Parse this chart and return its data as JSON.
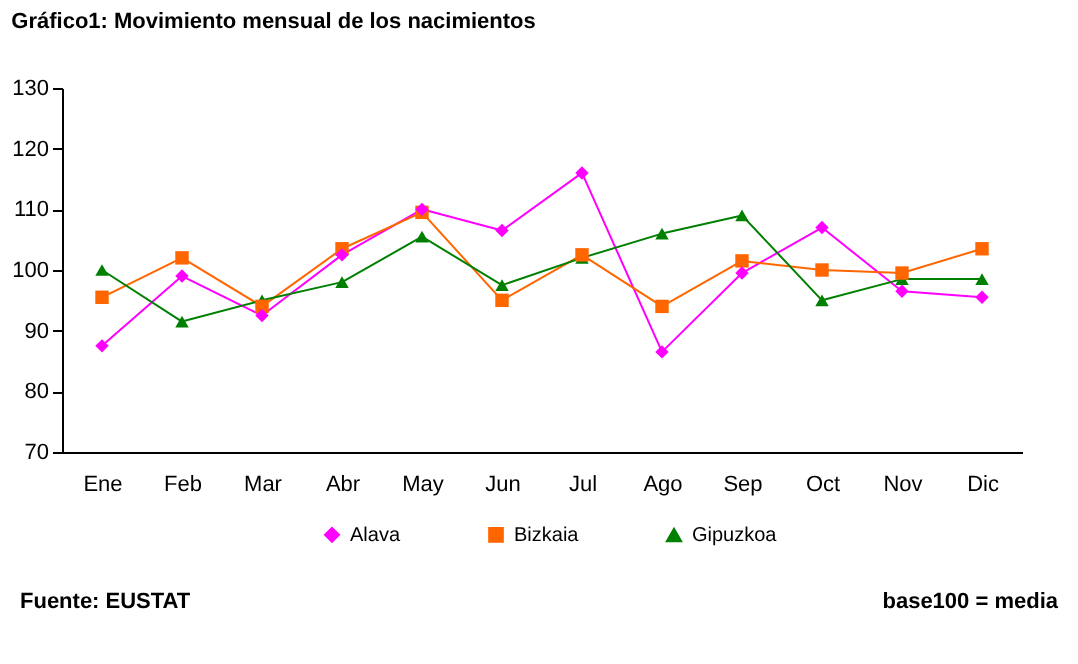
{
  "chart_data": {
    "type": "line",
    "title": "Gráfico1: Movimiento mensual de los nacimientos",
    "categories": [
      "Ene",
      "Feb",
      "Mar",
      "Abr",
      "May",
      "Jun",
      "Jul",
      "Ago",
      "Sep",
      "Oct",
      "Nov",
      "Dic"
    ],
    "series": [
      {
        "name": "Alava",
        "color": "#ff00ff",
        "marker": "diamond",
        "values": [
          87.5,
          99,
          92.5,
          102.5,
          110,
          106.5,
          116,
          86.5,
          99.5,
          107,
          96.5,
          95.5
        ]
      },
      {
        "name": "Bizkaia",
        "color": "#ff6600",
        "marker": "square",
        "values": [
          95.5,
          102,
          94,
          103.5,
          109.5,
          95,
          102.5,
          94,
          101.5,
          100,
          99.5,
          103.5
        ]
      },
      {
        "name": "Gipuzkoa",
        "color": "#008000",
        "marker": "triangle",
        "values": [
          100,
          91.5,
          95,
          98,
          105.5,
          97.5,
          102,
          106,
          109,
          95,
          98.5,
          98.5
        ]
      }
    ],
    "ylim": [
      70,
      130
    ],
    "yticks": [
      70,
      80,
      90,
      100,
      110,
      120,
      130
    ],
    "grid": false,
    "legend": "bottom",
    "annotations": [
      "Fuente: EUSTAT",
      "base100 = media"
    ]
  }
}
